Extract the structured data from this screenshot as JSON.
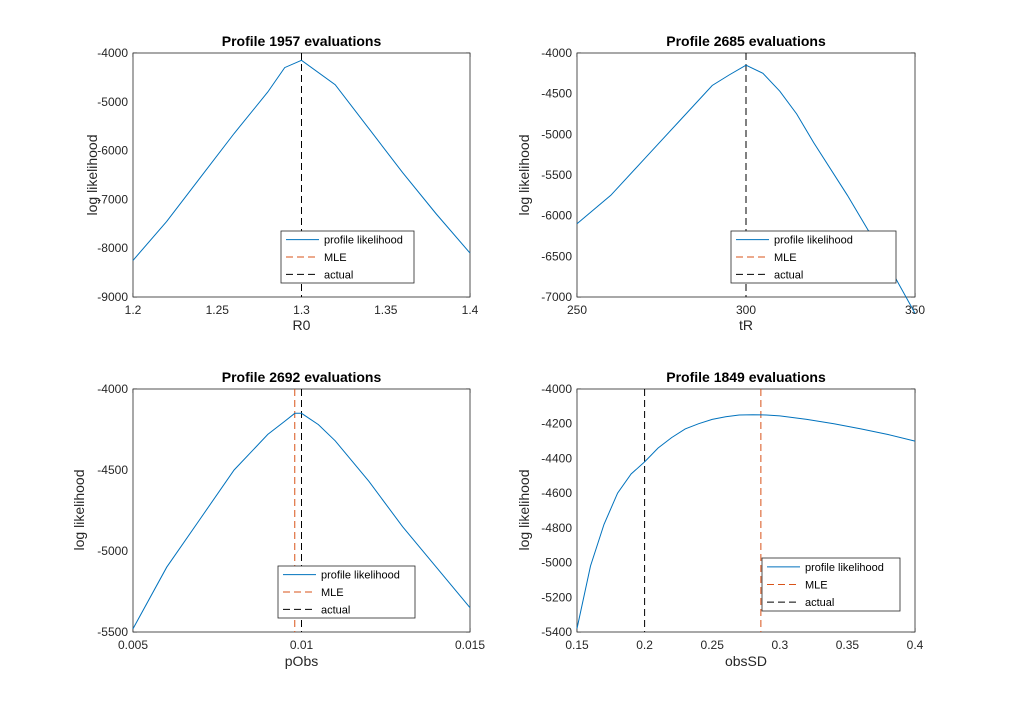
{
  "figure": {
    "background": "#ffffff",
    "colors": {
      "profile": "#0072BD",
      "mle": "#D95319",
      "actual": "#000000"
    }
  },
  "chart_data": [
    {
      "type": "line",
      "title": "Profile 1957 evaluations",
      "xlabel": "R0",
      "ylabel": "log likelihood",
      "xlim": [
        1.2,
        1.4
      ],
      "ylim": [
        -9000,
        -4000
      ],
      "xticks": [
        1.2,
        1.25,
        1.3,
        1.35,
        1.4
      ],
      "xtick_labels": [
        "1.2",
        "1.25",
        "1.3",
        "1.35",
        "1.4"
      ],
      "yticks": [
        -9000,
        -8000,
        -7000,
        -6000,
        -5000,
        -4000
      ],
      "ytick_labels": [
        "-9000",
        "-8000",
        "-7000",
        "-6000",
        "-5000",
        "-4000"
      ],
      "series": [
        {
          "name": "profile likelihood",
          "style": "solid",
          "color": "#0072BD",
          "x": [
            1.2,
            1.22,
            1.24,
            1.26,
            1.28,
            1.29,
            1.3,
            1.32,
            1.34,
            1.36,
            1.38,
            1.4
          ],
          "y": [
            -8250,
            -7450,
            -6550,
            -5650,
            -4800,
            -4300,
            -4150,
            -4650,
            -5550,
            -6450,
            -7300,
            -8100
          ]
        }
      ],
      "vlines": [
        {
          "name": "MLE",
          "x": 1.3,
          "color": "#D95319"
        },
        {
          "name": "actual",
          "x": 1.3,
          "color": "#000000"
        }
      ],
      "legend": {
        "position": "bottom-right"
      }
    },
    {
      "type": "line",
      "title": "Profile 2685 evaluations",
      "xlabel": "tR",
      "ylabel": "log likelihood",
      "xlim": [
        250,
        350
      ],
      "ylim": [
        -7000,
        -4000
      ],
      "xticks": [
        250,
        300,
        350
      ],
      "xtick_labels": [
        "250",
        "300",
        "350"
      ],
      "yticks": [
        -7000,
        -6500,
        -6000,
        -5500,
        -5000,
        -4500,
        -4000
      ],
      "ytick_labels": [
        "-7000",
        "-6500",
        "-6000",
        "-5500",
        "-5000",
        "-4500",
        "-4000"
      ],
      "series": [
        {
          "name": "profile likelihood",
          "style": "solid",
          "color": "#0072BD",
          "x": [
            250,
            260,
            270,
            280,
            290,
            295,
            300,
            305,
            310,
            315,
            320,
            330,
            340,
            350
          ],
          "y": [
            -6100,
            -5750,
            -5300,
            -4850,
            -4400,
            -4270,
            -4150,
            -4250,
            -4470,
            -4750,
            -5100,
            -5750,
            -6450,
            -7200
          ]
        }
      ],
      "vlines": [
        {
          "name": "MLE",
          "x": 300,
          "color": "#D95319"
        },
        {
          "name": "actual",
          "x": 300,
          "color": "#000000"
        }
      ],
      "legend": {
        "position": "bottom-right"
      }
    },
    {
      "type": "line",
      "title": "Profile 2692 evaluations",
      "xlabel": "pObs",
      "ylabel": "log likelihood",
      "xlim": [
        0.005,
        0.015
      ],
      "ylim": [
        -5500,
        -4000
      ],
      "xticks": [
        0.005,
        0.01,
        0.015
      ],
      "xtick_labels": [
        "0.005",
        "0.01",
        "0.015"
      ],
      "yticks": [
        -5500,
        -5000,
        -4500,
        -4000
      ],
      "ytick_labels": [
        "-5500",
        "-5000",
        "-4500",
        "-4000"
      ],
      "series": [
        {
          "name": "profile likelihood",
          "style": "solid",
          "color": "#0072BD",
          "x": [
            0.005,
            0.006,
            0.007,
            0.008,
            0.009,
            0.0095,
            0.0098,
            0.01,
            0.0105,
            0.011,
            0.012,
            0.013,
            0.014,
            0.015
          ],
          "y": [
            -5480,
            -5100,
            -4800,
            -4500,
            -4280,
            -4200,
            -4150,
            -4150,
            -4220,
            -4320,
            -4570,
            -4850,
            -5100,
            -5350
          ]
        }
      ],
      "vlines": [
        {
          "name": "MLE",
          "x": 0.0098,
          "color": "#D95319"
        },
        {
          "name": "actual",
          "x": 0.01,
          "color": "#000000"
        }
      ],
      "legend": {
        "position": "bottom-right"
      }
    },
    {
      "type": "line",
      "title": "Profile 1849 evaluations",
      "xlabel": "obsSD",
      "ylabel": "log likelihood",
      "xlim": [
        0.15,
        0.4
      ],
      "ylim": [
        -5400,
        -4000
      ],
      "xticks": [
        0.15,
        0.2,
        0.25,
        0.3,
        0.35,
        0.4
      ],
      "xtick_labels": [
        "0.15",
        "0.2",
        "0.25",
        "0.3",
        "0.35",
        "0.4"
      ],
      "yticks": [
        -5400,
        -5200,
        -5000,
        -4800,
        -4600,
        -4400,
        -4200,
        -4000
      ],
      "ytick_labels": [
        "-5400",
        "-5200",
        "-5000",
        "-4800",
        "-4600",
        "-4400",
        "-4200",
        "-4000"
      ],
      "series": [
        {
          "name": "profile likelihood",
          "style": "solid",
          "color": "#0072BD",
          "x": [
            0.15,
            0.16,
            0.17,
            0.18,
            0.19,
            0.2,
            0.21,
            0.22,
            0.23,
            0.24,
            0.25,
            0.26,
            0.27,
            0.28,
            0.29,
            0.3,
            0.32,
            0.34,
            0.36,
            0.38,
            0.4
          ],
          "y": [
            -5380,
            -5020,
            -4780,
            -4600,
            -4490,
            -4420,
            -4340,
            -4280,
            -4230,
            -4200,
            -4175,
            -4160,
            -4150,
            -4148,
            -4150,
            -4155,
            -4175,
            -4200,
            -4230,
            -4262,
            -4300
          ]
        }
      ],
      "vlines": [
        {
          "name": "MLE",
          "x": 0.286,
          "color": "#D95319"
        },
        {
          "name": "actual",
          "x": 0.2,
          "color": "#000000"
        }
      ],
      "legend": {
        "position": "bottom-right"
      }
    }
  ]
}
